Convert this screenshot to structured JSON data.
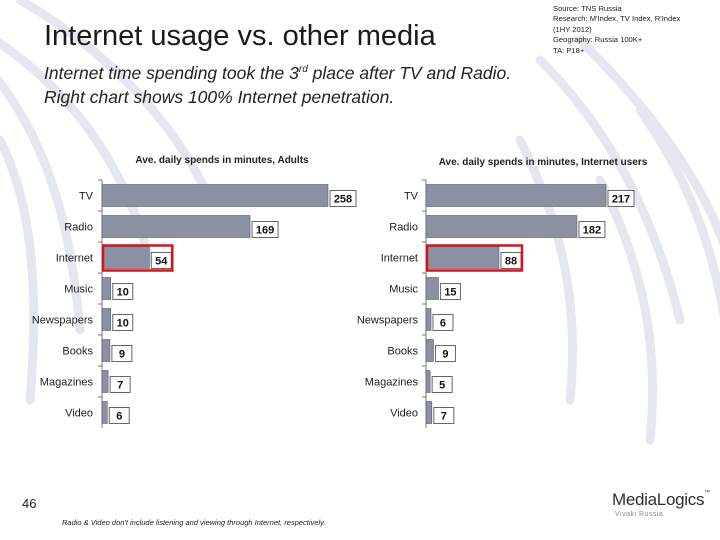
{
  "title": "Internet usage vs. other media",
  "subtitle": {
    "line1_before": "Internet time spending took the 3",
    "line1_sup": "rd",
    "line1_after": " place after TV and Radio.",
    "line2": "Right chart shows 100% Internet penetration."
  },
  "source": {
    "lines": [
      "Source: TNS Russia",
      "Research: M'Index, TV Index, R'Index",
      "(1HY 2012)",
      "Geography: Russia 100K+",
      "TA: P18+"
    ]
  },
  "page_number": "46",
  "footnote": "Radio & Video don't include listening and viewing through Internet, respectively.",
  "logo": {
    "name": "MediaLogics",
    "trademark": "™",
    "tagline": "Vivaki Russia"
  },
  "colors": {
    "bar": "#8c90a3",
    "highlight": "#d6141c",
    "text": "#1a1a1a"
  },
  "chart_data": [
    {
      "type": "bar",
      "orientation": "horizontal",
      "title": "Ave. daily spends in minutes, Adults",
      "categories": [
        "TV",
        "Radio",
        "Internet",
        "Music",
        "Newspapers",
        "Books",
        "Magazines",
        "Video"
      ],
      "values": [
        258,
        169,
        54,
        10,
        10,
        9,
        7,
        6
      ],
      "highlight": "Internet",
      "xlim": [
        0,
        258
      ]
    },
    {
      "type": "bar",
      "orientation": "horizontal",
      "title": "Ave. daily spends in minutes, Internet users",
      "categories": [
        "TV",
        "Radio",
        "Internet",
        "Music",
        "Newspapers",
        "Books",
        "Magazines",
        "Video"
      ],
      "values": [
        217,
        182,
        88,
        15,
        6,
        9,
        5,
        7
      ],
      "highlight": "Internet",
      "xlim": [
        0,
        217
      ]
    }
  ]
}
